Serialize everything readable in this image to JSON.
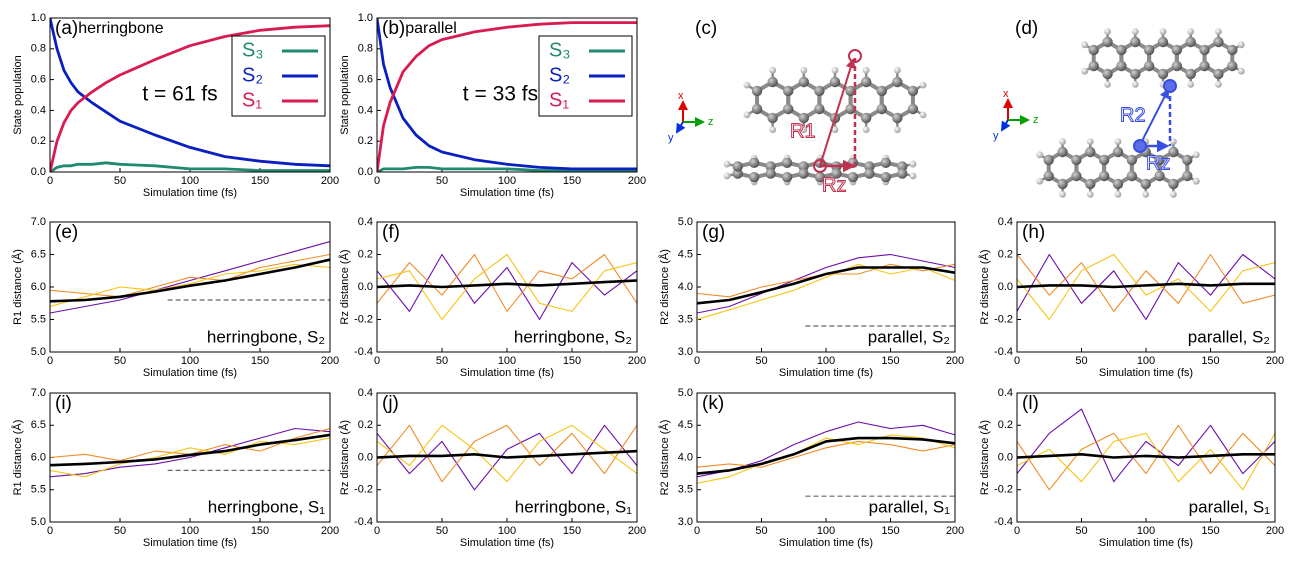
{
  "chart_data": [
    {
      "type": "line",
      "label": "(a)",
      "title": "herringbone",
      "annotation": "t = 61 fs",
      "ylabel": "State population",
      "xlabel": "Simulation time (fs)",
      "x": [
        0,
        5,
        10,
        15,
        20,
        30,
        40,
        50,
        75,
        100,
        125,
        150,
        175,
        200
      ],
      "series": [
        {
          "name": "S₃",
          "color": "#1f8a70",
          "values": [
            0,
            0.03,
            0.04,
            0.04,
            0.05,
            0.05,
            0.06,
            0.05,
            0.04,
            0.02,
            0.02,
            0.01,
            0.01,
            0.01
          ]
        },
        {
          "name": "S₂",
          "color": "#0a1fbf",
          "values": [
            1,
            0.8,
            0.66,
            0.58,
            0.52,
            0.45,
            0.39,
            0.33,
            0.24,
            0.16,
            0.1,
            0.07,
            0.05,
            0.04
          ]
        },
        {
          "name": "S₁",
          "color": "#d81b50",
          "values": [
            0,
            0.2,
            0.32,
            0.4,
            0.45,
            0.52,
            0.58,
            0.63,
            0.73,
            0.82,
            0.88,
            0.92,
            0.94,
            0.95
          ]
        }
      ],
      "xlim": [
        0,
        200
      ],
      "xticks": [
        0,
        50,
        100,
        150,
        200
      ],
      "ylim": [
        0,
        1
      ],
      "yticks": [
        {
          "value": 0,
          "label": "0.0"
        },
        0.2,
        0.4,
        0.6,
        0.8,
        {
          "value": 1,
          "label": "1.0"
        }
      ]
    },
    {
      "type": "line",
      "label": "(b)",
      "title": "parallel",
      "annotation": "t = 33 fs",
      "ylabel": "State population",
      "xlabel": "Simulation time (fs)",
      "x": [
        0,
        5,
        10,
        15,
        20,
        30,
        40,
        50,
        75,
        100,
        125,
        150,
        175,
        200
      ],
      "series": [
        {
          "name": "S₃",
          "color": "#1f8a70",
          "values": [
            0,
            0.02,
            0.02,
            0.02,
            0.02,
            0.03,
            0.03,
            0.02,
            0.02,
            0.02,
            0.01,
            0.01,
            0.01,
            0.01
          ]
        },
        {
          "name": "S₂",
          "color": "#0a1fbf",
          "values": [
            1,
            0.7,
            0.55,
            0.45,
            0.35,
            0.24,
            0.17,
            0.13,
            0.08,
            0.05,
            0.03,
            0.02,
            0.02,
            0.02
          ]
        },
        {
          "name": "S₁",
          "color": "#d81b50",
          "values": [
            0,
            0.3,
            0.45,
            0.55,
            0.65,
            0.75,
            0.82,
            0.86,
            0.91,
            0.94,
            0.96,
            0.97,
            0.97,
            0.97
          ]
        }
      ],
      "xlim": [
        0,
        200
      ],
      "xticks": [
        0,
        50,
        100,
        150,
        200
      ],
      "ylim": [
        0,
        1
      ],
      "yticks": [
        {
          "value": 0,
          "label": "0.0"
        },
        0.2,
        0.4,
        0.6,
        0.8,
        {
          "value": 1,
          "label": "1.0"
        }
      ]
    },
    {
      "type": "line",
      "label": "(e)",
      "annotation": "herringbone, S₂",
      "ylabel": "R1 distance (Å)",
      "xlabel": "Simulation time (fs)",
      "reference_line": 5.8,
      "x": [
        0,
        25,
        50,
        75,
        100,
        125,
        150,
        175,
        200
      ],
      "series": [
        {
          "color": "#6a0dad",
          "values": [
            5.6,
            5.7,
            5.8,
            5.95,
            6.1,
            6.25,
            6.4,
            6.55,
            6.7
          ]
        },
        {
          "color": "#f28c28",
          "values": [
            5.95,
            5.9,
            5.85,
            6.0,
            6.15,
            6.1,
            6.3,
            6.4,
            6.5
          ]
        },
        {
          "color": "#f5c518",
          "values": [
            5.7,
            5.85,
            6.0,
            5.95,
            6.05,
            6.2,
            6.25,
            6.35,
            6.3
          ]
        },
        {
          "color": "#000000",
          "values": [
            5.78,
            5.8,
            5.85,
            5.93,
            6.02,
            6.1,
            6.2,
            6.3,
            6.42
          ]
        }
      ],
      "xlim": [
        0,
        200
      ],
      "xticks": [
        0,
        50,
        100,
        150,
        200
      ],
      "ylim": [
        5,
        7
      ],
      "yticks": [
        {
          "value": 5,
          "label": "5.0"
        },
        5.5,
        {
          "value": 6,
          "label": "6.0"
        },
        6.5,
        {
          "value": 7,
          "label": "7.0"
        }
      ]
    },
    {
      "type": "line",
      "label": "(f)",
      "annotation": "herringbone, S₂",
      "ylabel": "Rz distance (Å)",
      "xlabel": "Simulation time (fs)",
      "x": [
        0,
        25,
        50,
        75,
        100,
        125,
        150,
        175,
        200
      ],
      "series": [
        {
          "color": "#6a0dad",
          "values": [
            0.1,
            -0.15,
            0.2,
            -0.1,
            0.12,
            -0.2,
            0.15,
            -0.05,
            0.1
          ]
        },
        {
          "color": "#f28c28",
          "values": [
            -0.1,
            0.15,
            -0.05,
            0.2,
            -0.15,
            0.1,
            0.05,
            0.2,
            -0.1
          ]
        },
        {
          "color": "#f5c518",
          "values": [
            0.05,
            0.1,
            -0.2,
            0.05,
            0.2,
            -0.1,
            -0.15,
            0.1,
            0.15
          ]
        },
        {
          "color": "#000000",
          "values": [
            0,
            0.01,
            0,
            0.01,
            0.02,
            0.01,
            0.02,
            0.03,
            0.04
          ]
        }
      ],
      "xlim": [
        0,
        200
      ],
      "xticks": [
        0,
        50,
        100,
        150,
        200
      ],
      "ylim": [
        -0.4,
        0.4
      ],
      "yticks": [
        -0.4,
        -0.2,
        {
          "value": 0,
          "label": "0.0"
        },
        0.2,
        0.4
      ]
    },
    {
      "type": "line",
      "label": "(g)",
      "annotation": "parallel, S₂",
      "ylabel": "R2 distance (Å)",
      "xlabel": "Simulation time (fs)",
      "reference_line": 3.4,
      "x": [
        0,
        25,
        50,
        75,
        100,
        125,
        150,
        175,
        200
      ],
      "series": [
        {
          "color": "#6a0dad",
          "values": [
            3.6,
            3.7,
            3.9,
            4.1,
            4.3,
            4.45,
            4.5,
            4.4,
            4.3
          ]
        },
        {
          "color": "#f28c28",
          "values": [
            3.9,
            3.85,
            4.0,
            4.1,
            4.2,
            4.2,
            4.35,
            4.25,
            4.35
          ]
        },
        {
          "color": "#f5c518",
          "values": [
            3.5,
            3.65,
            3.8,
            3.95,
            4.15,
            4.35,
            4.2,
            4.3,
            4.1
          ]
        },
        {
          "color": "#000000",
          "values": [
            3.75,
            3.8,
            3.92,
            4.05,
            4.2,
            4.3,
            4.3,
            4.3,
            4.22
          ]
        }
      ],
      "xlim": [
        0,
        200
      ],
      "xticks": [
        0,
        50,
        100,
        150,
        200
      ],
      "ylim": [
        3,
        5
      ],
      "yticks": [
        {
          "value": 3,
          "label": "3.0"
        },
        3.5,
        {
          "value": 4,
          "label": "4.0"
        },
        4.5,
        {
          "value": 5,
          "label": "5.0"
        }
      ]
    },
    {
      "type": "line",
      "label": "(h)",
      "annotation": "parallel, S₂",
      "ylabel": "Rz distance (Å)",
      "xlabel": "Simulation time (fs)",
      "x": [
        0,
        25,
        50,
        75,
        100,
        125,
        150,
        175,
        200
      ],
      "series": [
        {
          "color": "#6a0dad",
          "values": [
            -0.15,
            0.2,
            -0.1,
            0.1,
            -0.2,
            0.15,
            -0.05,
            0.2,
            0.05
          ]
        },
        {
          "color": "#f28c28",
          "values": [
            0.2,
            -0.05,
            0.15,
            -0.15,
            0.1,
            -0.1,
            0.2,
            -0.1,
            -0.05
          ]
        },
        {
          "color": "#f5c518",
          "values": [
            0.05,
            -0.2,
            0.1,
            0.2,
            -0.05,
            0.05,
            -0.15,
            0.1,
            0.15
          ]
        },
        {
          "color": "#000000",
          "values": [
            0,
            0.01,
            0.01,
            0,
            0.01,
            0.02,
            0.01,
            0.02,
            0.02
          ]
        }
      ],
      "xlim": [
        0,
        200
      ],
      "xticks": [
        0,
        50,
        100,
        150,
        200
      ],
      "ylim": [
        -0.4,
        0.4
      ],
      "yticks": [
        -0.4,
        -0.2,
        {
          "value": 0,
          "label": "0.0"
        },
        0.2,
        0.4
      ]
    },
    {
      "type": "line",
      "label": "(i)",
      "annotation": "herringbone, S₁",
      "ylabel": "R1 distance (Å)",
      "xlabel": "Simulation time (fs)",
      "reference_line": 5.8,
      "x": [
        0,
        25,
        50,
        75,
        100,
        125,
        150,
        175,
        200
      ],
      "series": [
        {
          "color": "#6a0dad",
          "values": [
            5.7,
            5.75,
            5.85,
            5.9,
            6.0,
            6.15,
            6.3,
            6.45,
            6.4
          ]
        },
        {
          "color": "#f28c28",
          "values": [
            6.0,
            6.05,
            5.95,
            6.1,
            6.05,
            6.2,
            6.1,
            6.3,
            6.45
          ]
        },
        {
          "color": "#f5c518",
          "values": [
            5.8,
            5.7,
            5.9,
            6.0,
            6.15,
            6.05,
            6.25,
            6.2,
            6.3
          ]
        },
        {
          "color": "#000000",
          "values": [
            5.88,
            5.9,
            5.93,
            5.97,
            6.04,
            6.1,
            6.2,
            6.27,
            6.35
          ]
        }
      ],
      "xlim": [
        0,
        200
      ],
      "xticks": [
        0,
        50,
        100,
        150,
        200
      ],
      "ylim": [
        5,
        7
      ],
      "yticks": [
        {
          "value": 5,
          "label": "5.0"
        },
        5.5,
        {
          "value": 6,
          "label": "6.0"
        },
        6.5,
        {
          "value": 7,
          "label": "7.0"
        }
      ]
    },
    {
      "type": "line",
      "label": "(j)",
      "annotation": "herringbone, S₁",
      "ylabel": "Rz distance (Å)",
      "xlabel": "Simulation time (fs)",
      "x": [
        0,
        25,
        50,
        75,
        100,
        125,
        150,
        175,
        200
      ],
      "series": [
        {
          "color": "#6a0dad",
          "values": [
            0.15,
            -0.1,
            0.1,
            -0.2,
            0.05,
            0.15,
            -0.1,
            0.2,
            -0.05
          ]
        },
        {
          "color": "#f28c28",
          "values": [
            -0.05,
            0.2,
            -0.15,
            0.1,
            0.2,
            -0.05,
            0.15,
            -0.1,
            0.2
          ]
        },
        {
          "color": "#f5c518",
          "values": [
            0.1,
            -0.05,
            0.2,
            0.05,
            -0.15,
            0.1,
            0.2,
            0.05,
            -0.1
          ]
        },
        {
          "color": "#000000",
          "values": [
            0,
            0.01,
            0.01,
            0.02,
            0,
            0.01,
            0.02,
            0.03,
            0.04
          ]
        }
      ],
      "xlim": [
        0,
        200
      ],
      "xticks": [
        0,
        50,
        100,
        150,
        200
      ],
      "ylim": [
        -0.4,
        0.4
      ],
      "yticks": [
        -0.4,
        -0.2,
        {
          "value": 0,
          "label": "0.0"
        },
        0.2,
        0.4
      ]
    },
    {
      "type": "line",
      "label": "(k)",
      "annotation": "parallel, S₁",
      "ylabel": "R2 distance (Å)",
      "xlabel": "Simulation time (fs)",
      "reference_line": 3.4,
      "x": [
        0,
        25,
        50,
        75,
        100,
        125,
        150,
        175,
        200
      ],
      "series": [
        {
          "color": "#6a0dad",
          "values": [
            3.7,
            3.8,
            3.95,
            4.2,
            4.4,
            4.55,
            4.45,
            4.5,
            4.35
          ]
        },
        {
          "color": "#f28c28",
          "values": [
            3.85,
            3.9,
            3.85,
            4.0,
            4.15,
            4.25,
            4.2,
            4.1,
            4.2
          ]
        },
        {
          "color": "#f5c518",
          "values": [
            3.6,
            3.7,
            3.9,
            4.05,
            4.3,
            4.2,
            4.35,
            4.3,
            4.15
          ]
        },
        {
          "color": "#000000",
          "values": [
            3.75,
            3.8,
            3.9,
            4.05,
            4.25,
            4.3,
            4.3,
            4.28,
            4.22
          ]
        }
      ],
      "xlim": [
        0,
        200
      ],
      "xticks": [
        0,
        50,
        100,
        150,
        200
      ],
      "ylim": [
        3,
        5
      ],
      "yticks": [
        {
          "value": 3,
          "label": "3.0"
        },
        3.5,
        {
          "value": 4,
          "label": "4.0"
        },
        4.5,
        {
          "value": 5,
          "label": "5.0"
        }
      ]
    },
    {
      "type": "line",
      "label": "(l)",
      "annotation": "parallel, S₁",
      "ylabel": "Rz distance (Å)",
      "xlabel": "Simulation time (fs)",
      "x": [
        0,
        25,
        50,
        75,
        100,
        125,
        150,
        175,
        200
      ],
      "series": [
        {
          "color": "#6a0dad",
          "values": [
            -0.1,
            0.15,
            0.3,
            -0.15,
            0.1,
            -0.05,
            0.2,
            -0.1,
            0.1
          ]
        },
        {
          "color": "#f28c28",
          "values": [
            0.1,
            -0.2,
            0.05,
            0.15,
            -0.1,
            0.2,
            -0.1,
            0.15,
            -0.05
          ]
        },
        {
          "color": "#f5c518",
          "values": [
            -0.05,
            0.05,
            -0.15,
            0.1,
            0.15,
            -0.15,
            0.05,
            -0.2,
            0.15
          ]
        },
        {
          "color": "#000000",
          "values": [
            0,
            0.01,
            0.02,
            0,
            0.01,
            0,
            0.01,
            0.02,
            0.02
          ]
        }
      ],
      "xlim": [
        0,
        200
      ],
      "xticks": [
        0,
        50,
        100,
        150,
        200
      ],
      "ylim": [
        -0.4,
        0.4
      ],
      "yticks": [
        -0.4,
        -0.2,
        {
          "value": 0,
          "label": "0.0"
        },
        0.2,
        0.4
      ]
    }
  ],
  "diagrams": [
    {
      "label": "(c)",
      "axes": [
        "x",
        "y",
        "z"
      ],
      "distances": [
        "R1",
        "Rz"
      ]
    },
    {
      "label": "(d)",
      "axes": [
        "x",
        "y",
        "z"
      ],
      "distances": [
        "R2",
        "Rz"
      ]
    }
  ]
}
